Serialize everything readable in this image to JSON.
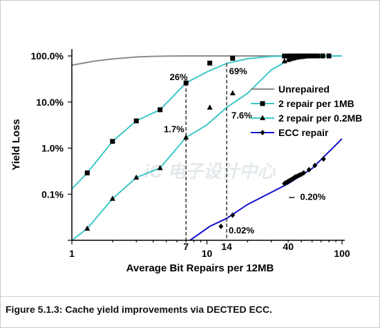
{
  "caption": "Figure 5.1.3: Cache yield improvements via DECTED ECC.",
  "chart_data": {
    "type": "line",
    "xscale": "log",
    "yscale": "log",
    "xlim": [
      1,
      100
    ],
    "ylim": [
      0.01,
      100
    ],
    "xlabel": "Average Bit Repairs per 12MB",
    "ylabel": "Yield Loss",
    "x_tick_labels": [
      "1",
      "10",
      "100"
    ],
    "x_marker_labels": [
      "7",
      "14",
      "40"
    ],
    "y_tick_labels": [
      "0.1%",
      "1.0%",
      "10.0%",
      "100.0%"
    ],
    "legend_placement": "right",
    "series": [
      {
        "name": "Unrepaired",
        "color": "#8a8a8a",
        "marker": "none",
        "x": [
          1,
          1.5,
          2,
          3,
          4,
          5,
          7,
          10,
          14,
          20,
          30,
          40,
          60,
          100
        ],
        "y": [
          63,
          78,
          86,
          95,
          98,
          99.3,
          99.9,
          100,
          100,
          100,
          100,
          100,
          100,
          100
        ]
      },
      {
        "name": "2 repair per 1MB",
        "color": "#3cc8c8",
        "marker": "square",
        "x": [
          1,
          1.3,
          2,
          3,
          4.5,
          7,
          10,
          14,
          20,
          30,
          40,
          60,
          100
        ],
        "y": [
          0.13,
          0.29,
          1.4,
          3.9,
          6.8,
          26,
          45,
          69,
          87,
          98,
          99.5,
          100,
          100
        ],
        "marker_x": [
          1.3,
          2,
          3,
          4.5,
          7,
          10.5,
          15.5,
          37.5,
          40,
          42,
          44,
          46,
          48,
          50,
          52,
          54,
          56,
          58,
          60,
          62,
          66,
          72,
          80
        ],
        "marker_y": [
          0.29,
          1.4,
          3.9,
          6.8,
          26,
          70,
          89,
          99.5,
          99.6,
          99.7,
          99.8,
          99.8,
          99.9,
          99.9,
          100,
          100,
          100,
          100,
          100,
          100,
          100,
          100,
          100
        ]
      },
      {
        "name": "2 repair per 0.2MB",
        "color": "#3cc8c8",
        "marker": "triangle",
        "x": [
          1,
          1.3,
          2,
          3,
          4.5,
          7,
          10,
          14,
          20,
          30,
          40,
          60,
          100
        ],
        "y": [
          0.01,
          0.018,
          0.08,
          0.23,
          0.37,
          1.7,
          3.2,
          7.6,
          15.5,
          50,
          80,
          98,
          100
        ],
        "marker_x": [
          1.3,
          2,
          3,
          4.5,
          7,
          10.5,
          15.5,
          37.5,
          40,
          42,
          44,
          46,
          48,
          50,
          52,
          56
        ],
        "marker_y": [
          0.018,
          0.08,
          0.23,
          0.37,
          1.7,
          7.6,
          15.5,
          77,
          82,
          86,
          89,
          92,
          94,
          95,
          96,
          98
        ]
      },
      {
        "name": "ECC repair",
        "color": "#1010cc",
        "marker": "diamond",
        "x": [
          7.5,
          10.5,
          14,
          20,
          30,
          40,
          60,
          100
        ],
        "y": [
          0.01,
          0.02,
          0.03,
          0.06,
          0.11,
          0.17,
          0.36,
          1.6
        ],
        "marker_x": [
          12.7,
          15.5,
          37.5,
          38.5,
          39.5,
          40.5,
          41.5,
          42.5,
          43.5,
          44.5,
          45.5,
          47,
          48.5,
          50,
          52,
          57,
          63,
          73
        ],
        "marker_y": [
          0.02,
          0.035,
          0.17,
          0.178,
          0.186,
          0.194,
          0.202,
          0.21,
          0.22,
          0.23,
          0.24,
          0.25,
          0.26,
          0.27,
          0.29,
          0.34,
          0.42,
          0.58
        ]
      }
    ],
    "annotations": [
      {
        "text": "26%",
        "x": 5.3,
        "y": 30
      },
      {
        "text": "69%",
        "x": 14.6,
        "y": 40
      },
      {
        "text": "1.7%",
        "x": 4.8,
        "y": 2.2
      },
      {
        "text": "7.6%",
        "x": 15.2,
        "y": 4.4
      },
      {
        "text": "0.02%",
        "x": 14.5,
        "y": 0.014
      },
      {
        "text": "0.20%",
        "x": 49,
        "y": 0.075
      }
    ],
    "vlines_x": [
      7,
      14
    ]
  }
}
